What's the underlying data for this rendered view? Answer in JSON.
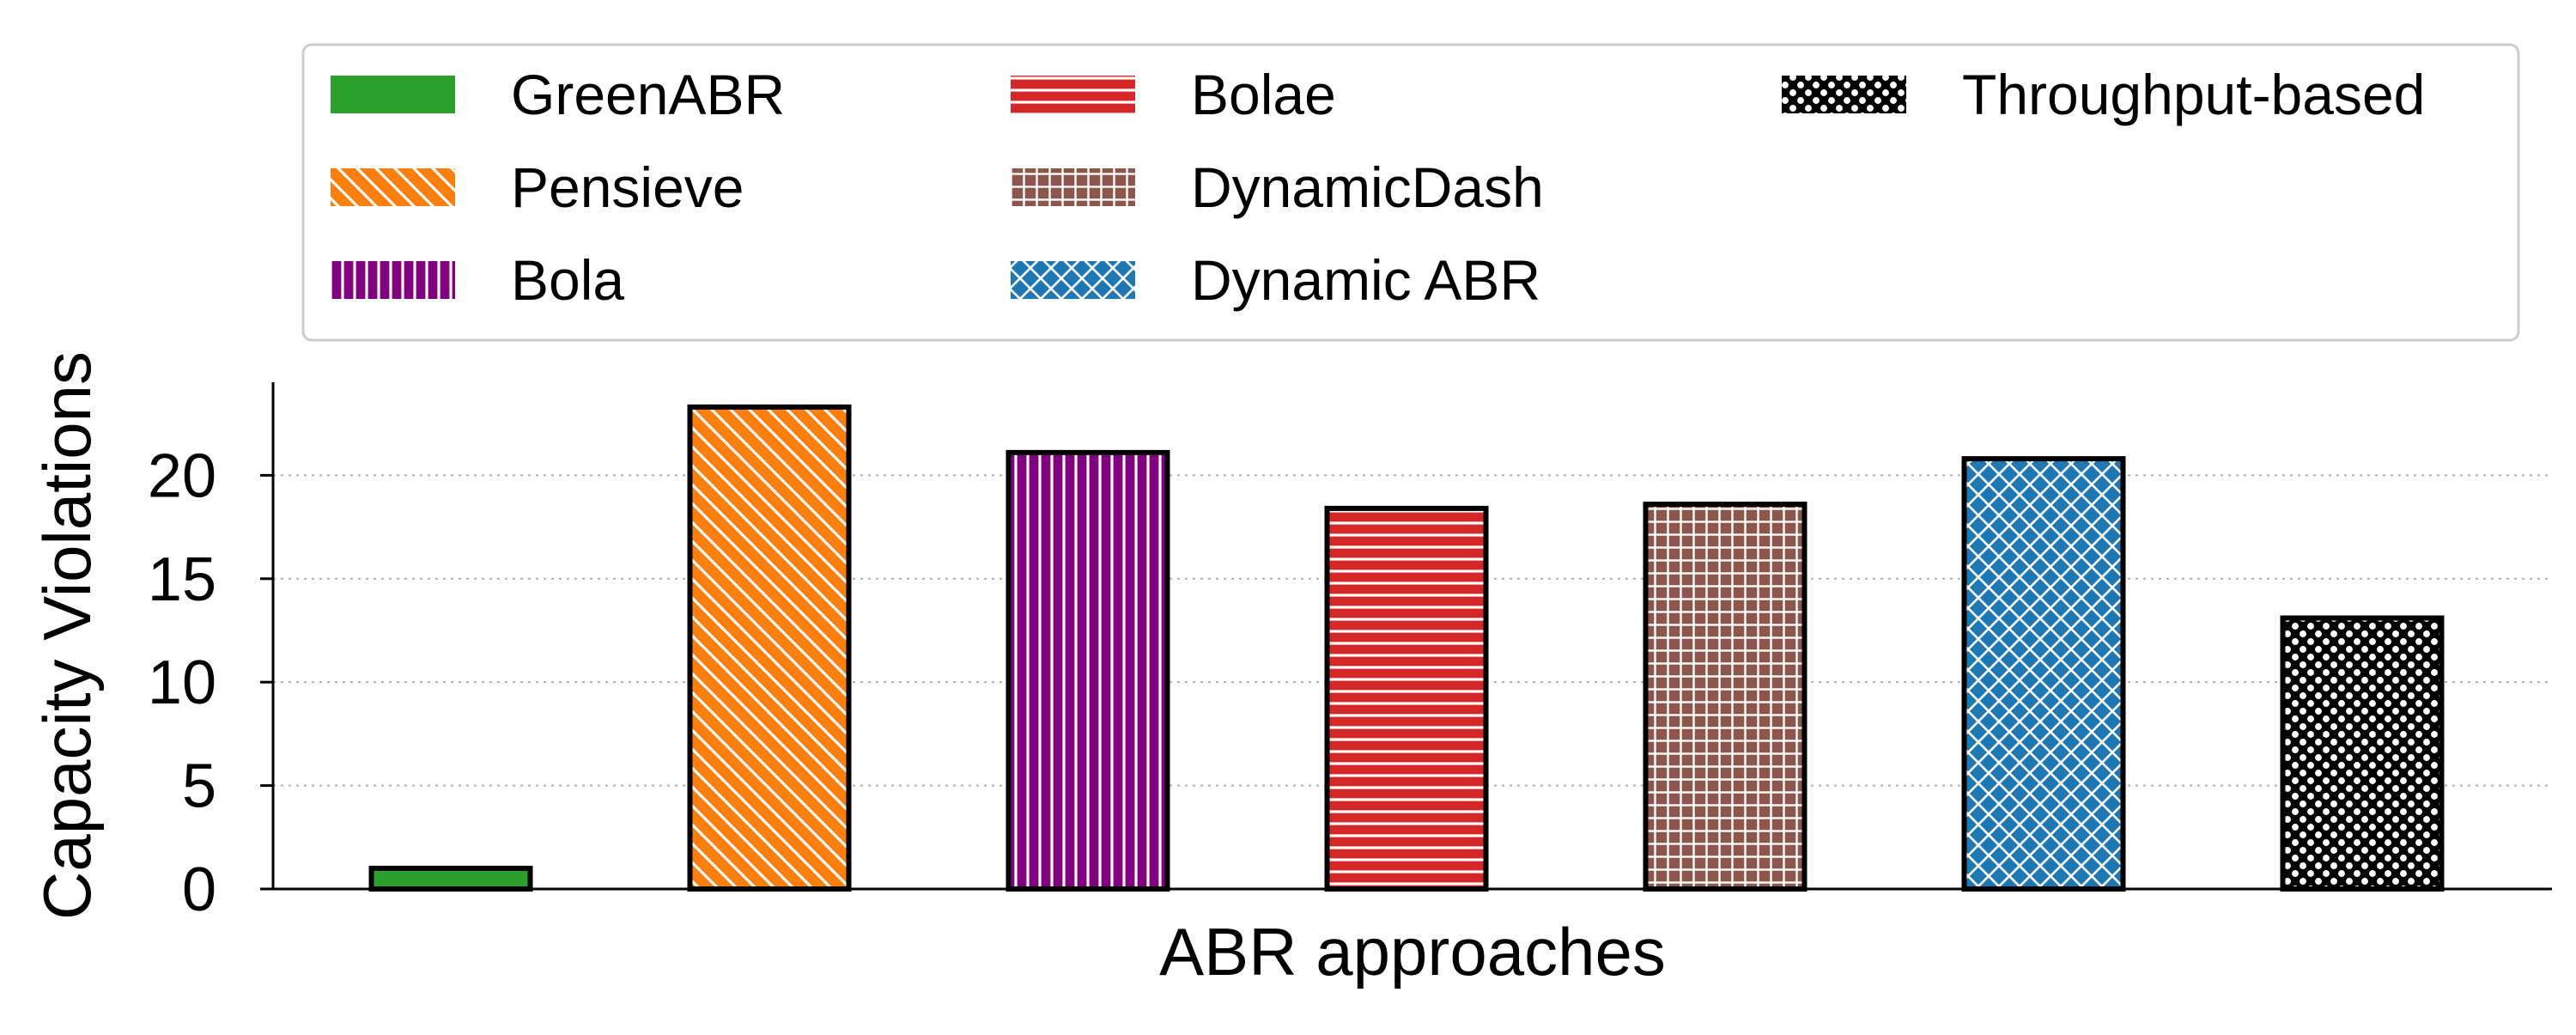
{
  "chart_data": {
    "type": "bar",
    "xlabel": "ABR approaches",
    "ylabel": "Capacity Violations",
    "ylim": [
      0,
      24.5
    ],
    "yticks": [
      0,
      5,
      10,
      15,
      20
    ],
    "grid": "y, dotted",
    "legend_position": "top",
    "series": [
      {
        "name": "GreenABR",
        "value": 1,
        "color": "#2ca02c",
        "hatch": "none"
      },
      {
        "name": "Pensieve",
        "value": 23.3,
        "color": "#ff7f0e",
        "hatch": "diagonal"
      },
      {
        "name": "Bola",
        "value": 21.1,
        "color": "#800080",
        "hatch": "vertical"
      },
      {
        "name": "Bolae",
        "value": 18.4,
        "color": "#d62728",
        "hatch": "horizontal"
      },
      {
        "name": "DynamicDash",
        "value": 18.6,
        "color": "#8c564b",
        "hatch": "grid"
      },
      {
        "name": "Dynamic ABR",
        "value": 20.8,
        "color": "#1f77b4",
        "hatch": "crosshatch"
      },
      {
        "name": "Throughput-based",
        "value": 13.1,
        "color": "#000000",
        "hatch": "dots"
      }
    ]
  }
}
